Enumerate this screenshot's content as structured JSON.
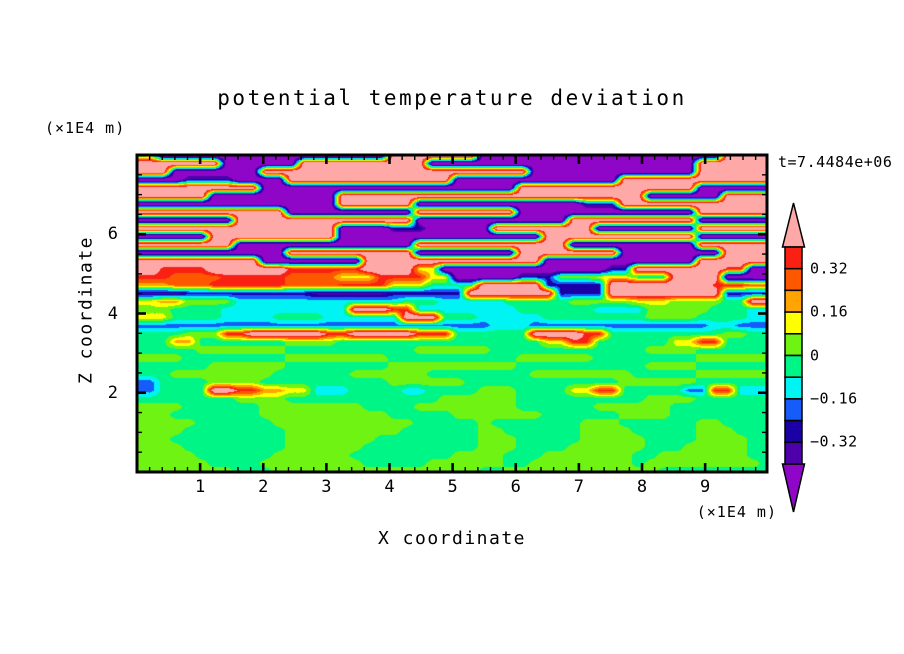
{
  "title": "potential temperature deviation",
  "annotations": {
    "time_label": "t=7.4484e+06",
    "y_axis_unit": "(×1E4 m)",
    "x_axis_unit": "(×1E4 m)"
  },
  "axes": {
    "x": {
      "label": "X coordinate",
      "range": [
        0,
        9.98
      ],
      "major_ticks": [
        1,
        2,
        3,
        4,
        5,
        6,
        7,
        8,
        9
      ],
      "major_tick_labels": [
        "1",
        "2",
        "3",
        "4",
        "5",
        "6",
        "7",
        "8",
        "9"
      ],
      "minor_tick_step": 0.2
    },
    "z": {
      "label": "Z coordinate",
      "range": [
        0,
        8
      ],
      "major_ticks": [
        2,
        4,
        6
      ],
      "major_tick_labels": [
        "2",
        "4",
        "6"
      ],
      "minor_tick_step": 0.5
    }
  },
  "colorbar": {
    "labels": [
      "0.32",
      "0.16",
      "0",
      "−0.16",
      "−0.32"
    ],
    "label_values": [
      0.32,
      0.16,
      0,
      -0.16,
      -0.32
    ],
    "over_color": "#ffa8a8",
    "under_color": "#9006c8"
  },
  "chart_data": {
    "type": "heatmap",
    "title": "potential temperature deviation",
    "xlabel": "X coordinate",
    "ylabel": "Z coordinate",
    "x_unit": "×1E4 m",
    "z_unit": "×1E4 m",
    "x_range": [
      0,
      9.98
    ],
    "z_range": [
      0,
      8
    ],
    "time": "t=7.4484e+06",
    "levels": [
      -0.4,
      -0.32,
      -0.24,
      -0.16,
      -0.08,
      0,
      0.08,
      0.16,
      0.24,
      0.32,
      0.4
    ],
    "level_colors": [
      "#9006c8",
      "#4e00ab",
      "#1a00a5",
      "#155cfa",
      "#00f4f4",
      "#00f587",
      "#6ef312",
      "#ffff00",
      "#ffa400",
      "#fd5800",
      "#fa2014",
      "#ffa8a8"
    ],
    "value_key": {
      "A": 0.55,
      "B": 0.36,
      "C": 0.28,
      "D": 0.2,
      "E": 0.12,
      "F": 0.04,
      "G": -0.04,
      "H": -0.12,
      "I": -0.2,
      "J": -0.28,
      "K": -0.36,
      "L": -0.55
    },
    "grid_note": "rows top(z=8) to bottom(z=0), 50 columns x=0..9.98; values are approximate potential temperature deviation read from the filled contour field",
    "grid_rows": [
      "GFLLLLLLLLLLLLLLLLLLAAAAAAALLLLLLLLLLLLLLLLLLLAAAA",
      "AAAAAAALLLLLLAAAAAAAAAALLLLLLLLLLLLLLLLLLLLLAAAAAA",
      "AAALLLLLLLAAAAAAAAAAAAAAAAAAAAALLLLLLLLLLLLLAAAAAA",
      "LLLLJJJJLLLLAAAAAAAAAAAAALLLLLLLLLLLLLAAAAAAAAAAAA",
      "AAAAAAAAAALLLLLLLLLLLLLLLLLLLLAAAAAAAAAAAAAALLLLLL",
      "AAAAAALLLLLLLLLLAAAAAAAAAAAAAAAAAAAAAAAALLLLLLAAAA",
      "LLLLLLLLLLLLLLLLAAAAAALLLLLLLLLLLLLJJJAAAAAAAAAAAA",
      "AAAAAAAAAAAALLLLLLLLLLAAAAAAAALLLLLLLLLLLLLLAAAAAA",
      "LLLLLLLLAAAAAAAAAAAAAALLLLLLLLLLLLAAAAAAAAAALLLLLL",
      "AAAAAAAAAAAAAAAALLLLJJJLLLLLAAAAAAAALLLLLLLLAAAAAA",
      "LLLLLLAAAAAAAAAALLLLLLLLLLLLLLLLAAAAAAAAAAAALLLLLL",
      "AAAAAAAALLLLLLLLLLLLLLAAAAAAAAAAAALLLLLLLLLLAAAAAA",
      "LLLLLLLLLLLLAAAAAAAAAALLLLLLLLAAAAAAAALLLLLLLLAAAA",
      "AAAAAAAAAALLLLLLLLAAAAAAAAAAAAAALLLLLLLLLLLLAAAAAA",
      "AABBBBAAAAAABBBBBBAAAAEELLLLLLLLLLLLLJJAAAAAAABBLL",
      "BBBCCCCBBBBBCCCCEEEBBBBEELLLLLJJJFFFEEEGGGAAAALLLL",
      "DDDCCCBBBBBBCCCCBBBBEEEGGGGAAAAAJJJJJAAAAAAAABBBCC",
      "KKKKJJJJJJJJJJKKKKKKJJJJJJAAAAAAAJJJJAAAAAAAAAJJJJ",
      "EEDDFFFFHHHHHHHHHHHHHGGGHHHHHGGGGGFFFFFEEEFFFFGGAA",
      "FFFGGGGHHHHHHHHHHAAABBHHHHHHHHGGGGGGHHHHFFFFFGGGHH",
      "EEEGGGGHHHHGGGGHHHHHHAAAGGGHHHHHGGGGGGGGFFFFGGGGHH",
      "IIIIIIIIIIIIIIIIIIIIIIIIIIIIHHHIIIIIIIIIIIIIIHHIII",
      "GGGGFFFBBAAAAAABBAAAAABBBGGGGGGAAAABBGGGGGGGGGFFGG",
      "GGGDDGGGGGGGFFFFGGGGGGGGGGGGGGGGEEBBGGGGGGEEBBGGGG",
      "GGGGGFFFFFFFGGGGGGGGGGFFFFFFGGGGGGGGGGGGFFFFGGGGGG",
      "FFFFGGGGGGGGFFFFFFFFGGGGGGGGGGFFFFFFGGGGGGGGFFFFFF",
      "GGGGGGFFFFFFGGGGGGGGFFFFFFFFFFGGGGGGGGGGFFFFGGGGGG",
      "GGGFFFFFFFFGGGGGGFFFFFFGGGGGGGGFFFFFFFFGGGGGFFFFFF",
      "IIGGGGFFFFGGGGGGGGGGFFFFFFGGGGGGGGGGGGFFFFFFGGGGGG",
      "IIGGGGAABBDDEEHHHGGGGHHGGGGFFFGGGGEEBBGGGGGIIBBHHH",
      "GGGGGGGGFFFFGGGGGGGGGGGGFFFFFFGGGGGGGGGGFFFFGGGGGG",
      "FFFFGGGGGGFFFFFFFFGGGGFFFFFFFFGGGGGGFFFFFFGGGGGGGG",
      "FFFGGGGGGGFFFFFFFFFFGGGGGFFFFFFFGGGGGGFFFFGGGGGGGG",
      "FFFFFGGGGGGFFFFFFFFFFFGGGGGFGGGGGGGFFFGGGGGGFFGGGG",
      "FFFFGGGGGGGGFFFFFFFFFGGGGGGFFGGGGGGFFFFGGGGGFFFGGG",
      "FFFGGGGGGGGGFFFFFFFGGGGGGGGFFFGGGGGFFFFFGGGGFFFFGG",
      "FFFFGGGGGGGGFFFFFFGGGGGGGGGFFFGGGGFFFFFFGGGFFFFFGG",
      "FFFFFGGGGGGFFFFFFGGGGGGGGFFFFGGGFFFFFFFGGFFFFFFFGG",
      "FFFFFFGGGGFFFFFFFFGGGGGFFFFFFGGFFFFFFFFGFFFFFFFFFG",
      "FFFFFFFFGGGFFFFFFFFFFFFFFFFGGFFFFFFFFFFFFGGGGGGGGG"
    ]
  }
}
